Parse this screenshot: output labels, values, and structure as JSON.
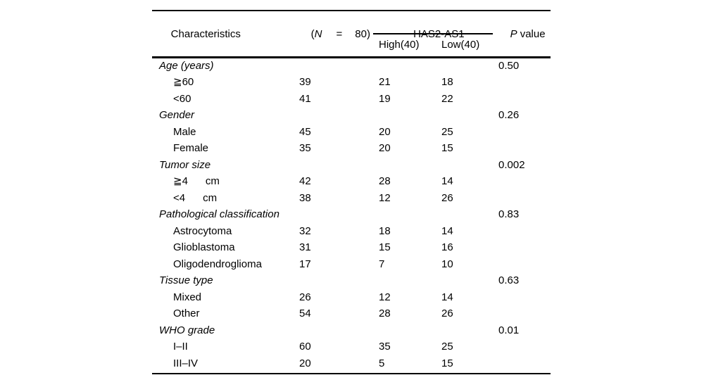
{
  "table": {
    "header": {
      "characteristics": "Characteristics",
      "n_paren_open": "(",
      "n_letter": "N",
      "n_equals": "=",
      "n_value": "80)",
      "group_label": "HAS2-AS1",
      "col_high": "High(40)",
      "col_low": "Low(40)",
      "p_letter": "P",
      "p_word": "value"
    },
    "rows": [
      {
        "label": "Age (years)",
        "type": "category",
        "n": "",
        "high": "",
        "low": "",
        "p": "0.50"
      },
      {
        "label": "≧60",
        "type": "item",
        "n": "39",
        "high": "21",
        "low": "18",
        "p": ""
      },
      {
        "label": "<60",
        "type": "item",
        "n": "41",
        "high": "19",
        "low": "22",
        "p": ""
      },
      {
        "label": "Gender",
        "type": "category",
        "n": "",
        "high": "",
        "low": "",
        "p": "0.26"
      },
      {
        "label": "Male",
        "type": "item",
        "n": "45",
        "high": "20",
        "low": "25",
        "p": ""
      },
      {
        "label": "Female",
        "type": "item",
        "n": "35",
        "high": "20",
        "low": "15",
        "p": ""
      },
      {
        "label": "Tumor size",
        "type": "category",
        "n": "",
        "high": "",
        "low": "",
        "p": "0.002"
      },
      {
        "label": "≧4      cm",
        "type": "item",
        "n": "42",
        "high": "28",
        "low": "14",
        "p": ""
      },
      {
        "label": "<4      cm",
        "type": "item",
        "n": "38",
        "high": "12",
        "low": "26",
        "p": ""
      },
      {
        "label": "Pathological classification",
        "type": "category",
        "n": "",
        "high": "",
        "low": "",
        "p": "0.83"
      },
      {
        "label": "Astrocytoma",
        "type": "item",
        "n": "32",
        "high": "18",
        "low": "14",
        "p": ""
      },
      {
        "label": "Glioblastoma",
        "type": "item",
        "n": "31",
        "high": "15",
        "low": "16",
        "p": ""
      },
      {
        "label": "Oligodendroglioma",
        "type": "item",
        "n": "17",
        "high": "7",
        "low": "10",
        "p": ""
      },
      {
        "label": "Tissue type",
        "type": "category",
        "n": "",
        "high": "",
        "low": "",
        "p": "0.63"
      },
      {
        "label": "Mixed",
        "type": "item",
        "n": "26",
        "high": "12",
        "low": "14",
        "p": ""
      },
      {
        "label": "Other",
        "type": "item",
        "n": "54",
        "high": "28",
        "low": "26",
        "p": ""
      },
      {
        "label": "WHO grade",
        "type": "category",
        "n": "",
        "high": "",
        "low": "",
        "p": "0.01"
      },
      {
        "label": "I–II",
        "type": "item",
        "n": "60",
        "high": "35",
        "low": "25",
        "p": ""
      },
      {
        "label": "III–IV",
        "type": "item",
        "n": "20",
        "high": "5",
        "low": "15",
        "p": ""
      }
    ]
  }
}
